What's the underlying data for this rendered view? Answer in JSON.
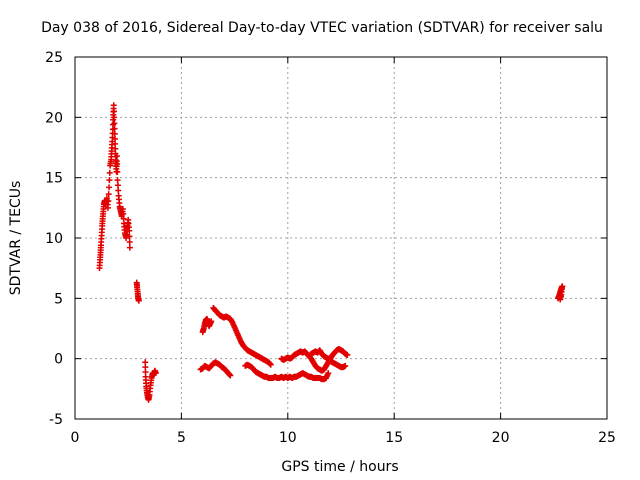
{
  "chart_data": {
    "type": "scatter",
    "title": "Day 038 of 2016, Sidereal Day-to-day VTEC variation (SDTVAR) for receiver salu",
    "xlabel": "GPS time / hours",
    "ylabel": "SDTVAR / TECUs",
    "xlim": [
      0,
      25
    ],
    "ylim": [
      -5,
      25
    ],
    "xticks": [
      0,
      5,
      10,
      15,
      20,
      25
    ],
    "yticks": [
      -5,
      0,
      5,
      10,
      15,
      20,
      25
    ],
    "xtick_labels": [
      "0",
      "5",
      "10",
      "15",
      "20",
      "25"
    ],
    "ytick_labels": [
      "-5",
      "0",
      "5",
      "10",
      "15",
      "20",
      "25"
    ],
    "grid": true,
    "marker": "+",
    "color": "#e00000",
    "series": [
      {
        "name": "SDTVAR",
        "segments": [
          [
            [
              1.15,
              7.5
            ],
            [
              1.18,
              8.2
            ],
            [
              1.2,
              8.8
            ],
            [
              1.22,
              9.4
            ],
            [
              1.25,
              10.2
            ],
            [
              1.28,
              11.0
            ],
            [
              1.3,
              11.6
            ],
            [
              1.33,
              12.2
            ],
            [
              1.36,
              12.8
            ],
            [
              1.4,
              13.1
            ],
            [
              1.45,
              12.9
            ],
            [
              1.5,
              13.3
            ],
            [
              1.55,
              12.5
            ],
            [
              1.6,
              14.2
            ],
            [
              1.65,
              16.0
            ],
            [
              1.7,
              16.5
            ],
            [
              1.72,
              17.2
            ],
            [
              1.75,
              18.0
            ],
            [
              1.78,
              19.0
            ],
            [
              1.8,
              20.2
            ],
            [
              1.82,
              21.0
            ],
            [
              1.85,
              19.5
            ],
            [
              1.88,
              18.2
            ],
            [
              1.9,
              17.0
            ],
            [
              1.92,
              16.2
            ],
            [
              1.95,
              15.5
            ],
            [
              1.97,
              16.8
            ],
            [
              2.0,
              14.8
            ],
            [
              2.05,
              13.5
            ],
            [
              2.1,
              12.6
            ],
            [
              2.15,
              12.2
            ],
            [
              2.2,
              11.8
            ],
            [
              2.25,
              12.4
            ],
            [
              2.3,
              11.2
            ],
            [
              2.35,
              10.4
            ],
            [
              2.4,
              10.0
            ],
            [
              2.45,
              10.8
            ],
            [
              2.5,
              11.5
            ],
            [
              2.55,
              10.6
            ],
            [
              2.58,
              9.2
            ]
          ],
          [
            [
              2.9,
              6.3
            ],
            [
              2.92,
              5.9
            ],
            [
              2.95,
              5.4
            ],
            [
              2.97,
              5.0
            ],
            [
              3.0,
              4.8
            ]
          ],
          [
            [
              3.3,
              -0.3
            ],
            [
              3.32,
              -1.5
            ],
            [
              3.35,
              -2.3
            ],
            [
              3.38,
              -2.8
            ],
            [
              3.42,
              -3.2
            ],
            [
              3.46,
              -3.4
            ],
            [
              3.5,
              -3.0
            ],
            [
              3.55,
              -2.2
            ],
            [
              3.6,
              -1.6
            ],
            [
              3.65,
              -1.2
            ],
            [
              3.7,
              -1.3
            ],
            [
              3.75,
              -1.0
            ],
            [
              3.8,
              -1.2
            ]
          ],
          [
            [
              6.0,
              2.2
            ],
            [
              6.05,
              2.5
            ],
            [
              6.1,
              2.9
            ],
            [
              6.15,
              3.2
            ],
            [
              6.2,
              3.3
            ],
            [
              6.25,
              3.0
            ],
            [
              6.3,
              2.7
            ],
            [
              6.35,
              2.9
            ],
            [
              6.4,
              3.1
            ]
          ],
          [
            [
              5.9,
              -0.9
            ],
            [
              6.0,
              -0.8
            ],
            [
              6.1,
              -0.6
            ],
            [
              6.2,
              -0.7
            ],
            [
              6.3,
              -0.8
            ],
            [
              6.4,
              -0.6
            ],
            [
              6.5,
              -0.4
            ],
            [
              6.6,
              -0.3
            ],
            [
              6.7,
              -0.4
            ],
            [
              6.8,
              -0.5
            ],
            [
              6.9,
              -0.7
            ],
            [
              7.0,
              -0.8
            ],
            [
              7.1,
              -1.0
            ],
            [
              7.2,
              -1.2
            ],
            [
              7.3,
              -1.4
            ]
          ],
          [
            [
              6.5,
              4.2
            ],
            [
              6.6,
              4.0
            ],
            [
              6.7,
              3.8
            ],
            [
              6.8,
              3.6
            ],
            [
              6.9,
              3.5
            ],
            [
              7.0,
              3.4
            ],
            [
              7.1,
              3.5
            ],
            [
              7.2,
              3.4
            ],
            [
              7.3,
              3.3
            ],
            [
              7.4,
              3.0
            ],
            [
              7.5,
              2.6
            ],
            [
              7.6,
              2.2
            ],
            [
              7.7,
              1.8
            ],
            [
              7.8,
              1.4
            ],
            [
              7.9,
              1.1
            ],
            [
              8.0,
              0.9
            ],
            [
              8.1,
              0.7
            ],
            [
              8.2,
              0.6
            ],
            [
              8.3,
              0.5
            ],
            [
              8.4,
              0.4
            ],
            [
              8.5,
              0.3
            ],
            [
              8.6,
              0.2
            ],
            [
              8.7,
              0.1
            ],
            [
              8.8,
              0.0
            ],
            [
              8.9,
              -0.1
            ],
            [
              9.0,
              -0.2
            ],
            [
              9.1,
              -0.3
            ],
            [
              9.2,
              -0.5
            ]
          ],
          [
            [
              8.0,
              -0.6
            ],
            [
              8.1,
              -0.5
            ],
            [
              8.2,
              -0.6
            ],
            [
              8.3,
              -0.7
            ],
            [
              8.4,
              -0.9
            ],
            [
              8.5,
              -1.1
            ],
            [
              8.6,
              -1.2
            ],
            [
              8.7,
              -1.3
            ],
            [
              8.8,
              -1.4
            ],
            [
              8.9,
              -1.5
            ],
            [
              9.0,
              -1.5
            ],
            [
              9.1,
              -1.6
            ],
            [
              9.2,
              -1.6
            ],
            [
              9.3,
              -1.6
            ],
            [
              9.4,
              -1.5
            ],
            [
              9.5,
              -1.6
            ],
            [
              9.6,
              -1.6
            ],
            [
              9.7,
              -1.5
            ],
            [
              9.8,
              -1.6
            ],
            [
              9.9,
              -1.5
            ],
            [
              10.0,
              -1.6
            ],
            [
              10.1,
              -1.5
            ],
            [
              10.2,
              -1.6
            ],
            [
              10.3,
              -1.5
            ],
            [
              10.4,
              -1.5
            ],
            [
              10.5,
              -1.4
            ],
            [
              10.6,
              -1.3
            ],
            [
              10.7,
              -1.2
            ],
            [
              10.8,
              -1.3
            ],
            [
              10.9,
              -1.4
            ],
            [
              11.0,
              -1.5
            ],
            [
              11.1,
              -1.5
            ],
            [
              11.2,
              -1.6
            ],
            [
              11.3,
              -1.6
            ],
            [
              11.4,
              -1.6
            ],
            [
              11.5,
              -1.6
            ],
            [
              11.6,
              -1.7
            ],
            [
              11.7,
              -1.7
            ],
            [
              11.8,
              -1.6
            ],
            [
              11.9,
              -1.2
            ]
          ],
          [
            [
              9.7,
              0.0
            ],
            [
              9.8,
              -0.1
            ],
            [
              9.9,
              0.0
            ],
            [
              10.0,
              0.1
            ],
            [
              10.1,
              0.0
            ],
            [
              10.2,
              0.1
            ],
            [
              10.3,
              0.3
            ],
            [
              10.4,
              0.4
            ],
            [
              10.5,
              0.5
            ],
            [
              10.6,
              0.6
            ],
            [
              10.7,
              0.5
            ],
            [
              10.8,
              0.6
            ],
            [
              10.9,
              0.4
            ],
            [
              11.0,
              0.2
            ],
            [
              11.1,
              0.0
            ],
            [
              11.2,
              -0.3
            ],
            [
              11.3,
              -0.6
            ],
            [
              11.4,
              -0.8
            ],
            [
              11.5,
              -0.9
            ],
            [
              11.6,
              -1.0
            ],
            [
              11.7,
              -0.9
            ],
            [
              11.8,
              -0.6
            ],
            [
              11.9,
              -0.3
            ],
            [
              12.0,
              0.0
            ],
            [
              12.1,
              0.3
            ],
            [
              12.2,
              0.5
            ],
            [
              12.3,
              0.7
            ],
            [
              12.4,
              0.8
            ],
            [
              12.5,
              0.7
            ],
            [
              12.6,
              0.6
            ],
            [
              12.7,
              0.4
            ],
            [
              12.8,
              0.3
            ]
          ],
          [
            [
              11.0,
              0.2
            ],
            [
              11.1,
              0.4
            ],
            [
              11.2,
              0.5
            ],
            [
              11.3,
              0.6
            ],
            [
              11.4,
              0.5
            ],
            [
              11.5,
              0.7
            ],
            [
              11.6,
              0.4
            ],
            [
              11.7,
              0.2
            ],
            [
              11.8,
              0.1
            ],
            [
              11.9,
              0.0
            ],
            [
              12.0,
              -0.2
            ],
            [
              12.1,
              -0.3
            ],
            [
              12.2,
              -0.4
            ],
            [
              12.3,
              -0.5
            ],
            [
              12.4,
              -0.6
            ],
            [
              12.5,
              -0.7
            ],
            [
              12.6,
              -0.7
            ],
            [
              12.7,
              -0.6
            ]
          ],
          [
            [
              22.7,
              5.0
            ],
            [
              22.75,
              5.2
            ],
            [
              22.8,
              5.5
            ],
            [
              22.85,
              5.8
            ],
            [
              22.9,
              6.0
            ],
            [
              22.85,
              5.3
            ],
            [
              22.8,
              4.9
            ]
          ]
        ]
      }
    ]
  }
}
